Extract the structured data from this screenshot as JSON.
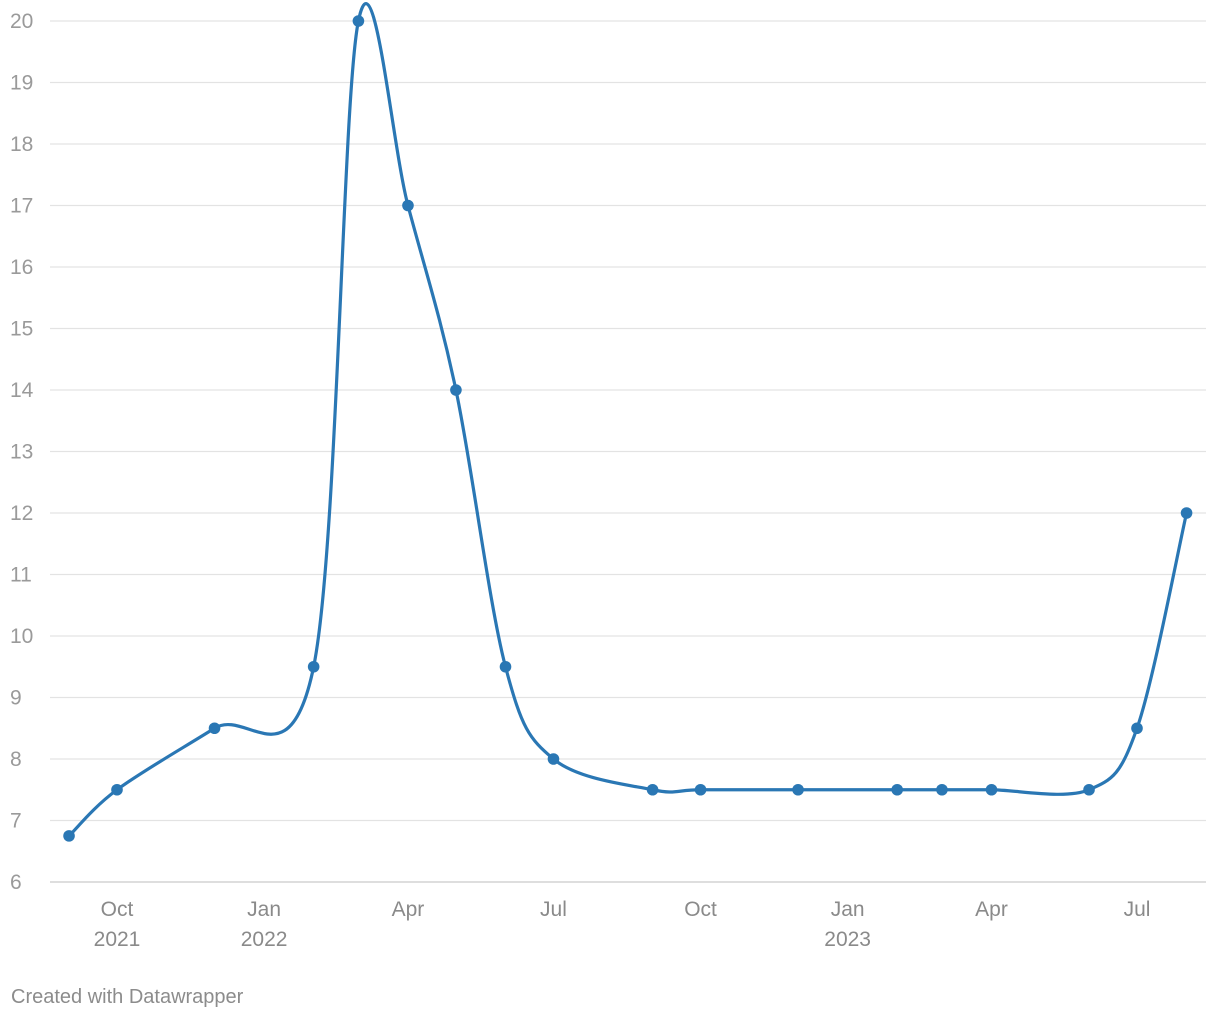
{
  "chart_data": {
    "type": "line",
    "title": "",
    "xlabel": "",
    "ylabel": "",
    "ylim": [
      6,
      20
    ],
    "yticks": [
      6,
      7,
      8,
      9,
      10,
      11,
      12,
      13,
      14,
      15,
      16,
      17,
      18,
      19,
      20
    ],
    "grid": true,
    "legend": "none",
    "color": "#2a77b4",
    "xticks": [
      {
        "date": "2021-10-01",
        "label": "Oct",
        "sublabel": "2021"
      },
      {
        "date": "2022-01-01",
        "label": "Jan",
        "sublabel": "2022"
      },
      {
        "date": "2022-04-01",
        "label": "Apr",
        "sublabel": ""
      },
      {
        "date": "2022-07-01",
        "label": "Jul",
        "sublabel": ""
      },
      {
        "date": "2022-10-01",
        "label": "Oct",
        "sublabel": ""
      },
      {
        "date": "2023-01-01",
        "label": "Jan",
        "sublabel": "2023"
      },
      {
        "date": "2023-04-01",
        "label": "Apr",
        "sublabel": ""
      },
      {
        "date": "2023-07-01",
        "label": "Jul",
        "sublabel": ""
      }
    ],
    "series": [
      {
        "points": [
          {
            "x": "2021-09-01",
            "y": 6.75
          },
          {
            "x": "2021-10-01",
            "y": 7.5
          },
          {
            "x": "2021-12-01",
            "y": 8.5
          },
          {
            "x": "2022-02-01",
            "y": 9.5
          },
          {
            "x": "2022-03-01",
            "y": 20
          },
          {
            "x": "2022-04-01",
            "y": 17
          },
          {
            "x": "2022-05-01",
            "y": 14
          },
          {
            "x": "2022-06-01",
            "y": 9.5
          },
          {
            "x": "2022-07-01",
            "y": 8
          },
          {
            "x": "2022-09-01",
            "y": 7.5
          },
          {
            "x": "2022-10-01",
            "y": 7.5
          },
          {
            "x": "2022-12-01",
            "y": 7.5
          },
          {
            "x": "2023-02-01",
            "y": 7.5
          },
          {
            "x": "2023-03-01",
            "y": 7.5
          },
          {
            "x": "2023-04-01",
            "y": 7.5
          },
          {
            "x": "2023-06-01",
            "y": 7.5
          },
          {
            "x": "2023-07-01",
            "y": 8.5
          },
          {
            "x": "2023-08-01",
            "y": 12
          }
        ]
      }
    ]
  },
  "footer": {
    "credit": "Created with Datawrapper"
  }
}
